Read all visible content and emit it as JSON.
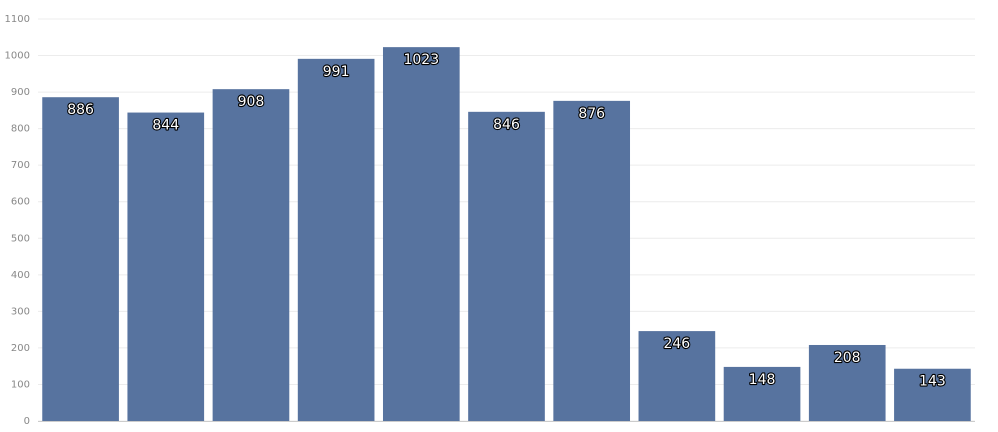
{
  "chart_data": {
    "type": "bar",
    "categories": [
      null,
      null,
      null,
      null,
      null,
      null,
      null,
      null,
      null,
      null,
      null
    ],
    "values": [
      886,
      844,
      908,
      991,
      1023,
      846,
      876,
      246,
      148,
      208,
      143
    ],
    "color": "#57739f",
    "ylim": [
      0,
      1100
    ],
    "yticks": [
      0,
      100,
      200,
      300,
      400,
      500,
      600,
      700,
      800,
      900,
      1000,
      1100
    ],
    "grid": true
  }
}
